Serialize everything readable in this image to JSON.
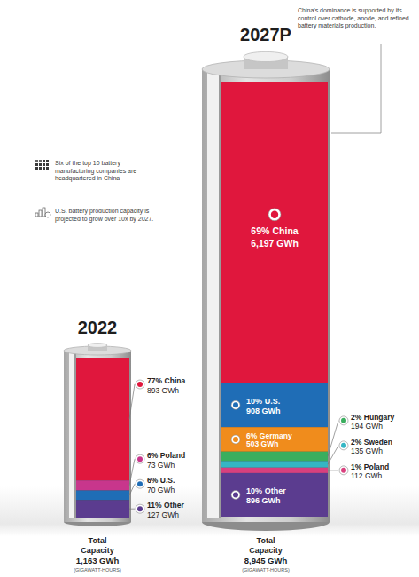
{
  "chart_data": [
    {
      "type": "bar",
      "stacked": true,
      "title": "2022",
      "ylim": [
        0,
        1163
      ],
      "tick_labels": false,
      "data_labels": true,
      "series": [
        {
          "name": "China",
          "color": "#e0173d",
          "values": [
            893
          ],
          "value_labels": [
            "893 GWh"
          ],
          "percent_label": "77%"
        },
        {
          "name": "Poland",
          "color": "#c8368c",
          "values": [
            73
          ],
          "value_labels": [
            "73 GWh"
          ],
          "percent_label": "6%"
        },
        {
          "name": "U.S.",
          "color": "#1f6db6",
          "values": [
            70
          ],
          "value_labels": [
            "70 GWh"
          ],
          "percent_label": "6%"
        },
        {
          "name": "Other",
          "color": "#5b3c8f",
          "values": [
            127
          ],
          "value_labels": [
            "127 GWh"
          ],
          "percent_label": "11%"
        }
      ],
      "total": 1163,
      "total_label": "1,163 GWh",
      "total_title": "Total Capacity",
      "total_unit": "(GIGAWATT-HOURS)",
      "annotations": [
        "Six of the top 10 battery manufacturing companies are headquartered in China",
        "U.S. battery production capacity is projected to grow over 10x by 2027."
      ]
    },
    {
      "type": "bar",
      "stacked": true,
      "title": "2027P",
      "ylim": [
        0,
        8945
      ],
      "tick_labels": false,
      "data_labels": true,
      "series": [
        {
          "name": "China",
          "color": "#e0173d",
          "values": [
            6197
          ],
          "value_labels": [
            "6,197 GWh"
          ],
          "percent_label": "69%"
        },
        {
          "name": "U.S.",
          "color": "#1f6db6",
          "values": [
            908
          ],
          "value_labels": [
            "908 GWh"
          ],
          "percent_label": "10%"
        },
        {
          "name": "Germany",
          "color": "#f08c1c",
          "values": [
            503
          ],
          "value_labels": [
            "503 GWh"
          ],
          "percent_label": "6%"
        },
        {
          "name": "Hungary",
          "color": "#3aae5e",
          "values": [
            194
          ],
          "value_labels": [
            "194 GWh"
          ],
          "percent_label": "2%"
        },
        {
          "name": "Sweden",
          "color": "#35b6c4",
          "values": [
            135
          ],
          "value_labels": [
            "135 GWh"
          ],
          "percent_label": "2%"
        },
        {
          "name": "Poland",
          "color": "#d9407e",
          "values": [
            112
          ],
          "value_labels": [
            "112 GWh"
          ],
          "percent_label": "1%"
        },
        {
          "name": "Other",
          "color": "#5b3c8f",
          "values": [
            896
          ],
          "value_labels": [
            "896 GWh"
          ],
          "percent_label": "10%"
        }
      ],
      "total": 8945,
      "total_label": "8,945 GWh",
      "total_title": "Total Capacity",
      "total_unit": "(GIGAWATT-HOURS)",
      "annotations": [
        "China's dominance is supported by its control over cathode, anode, and refined battery materials production."
      ]
    }
  ]
}
